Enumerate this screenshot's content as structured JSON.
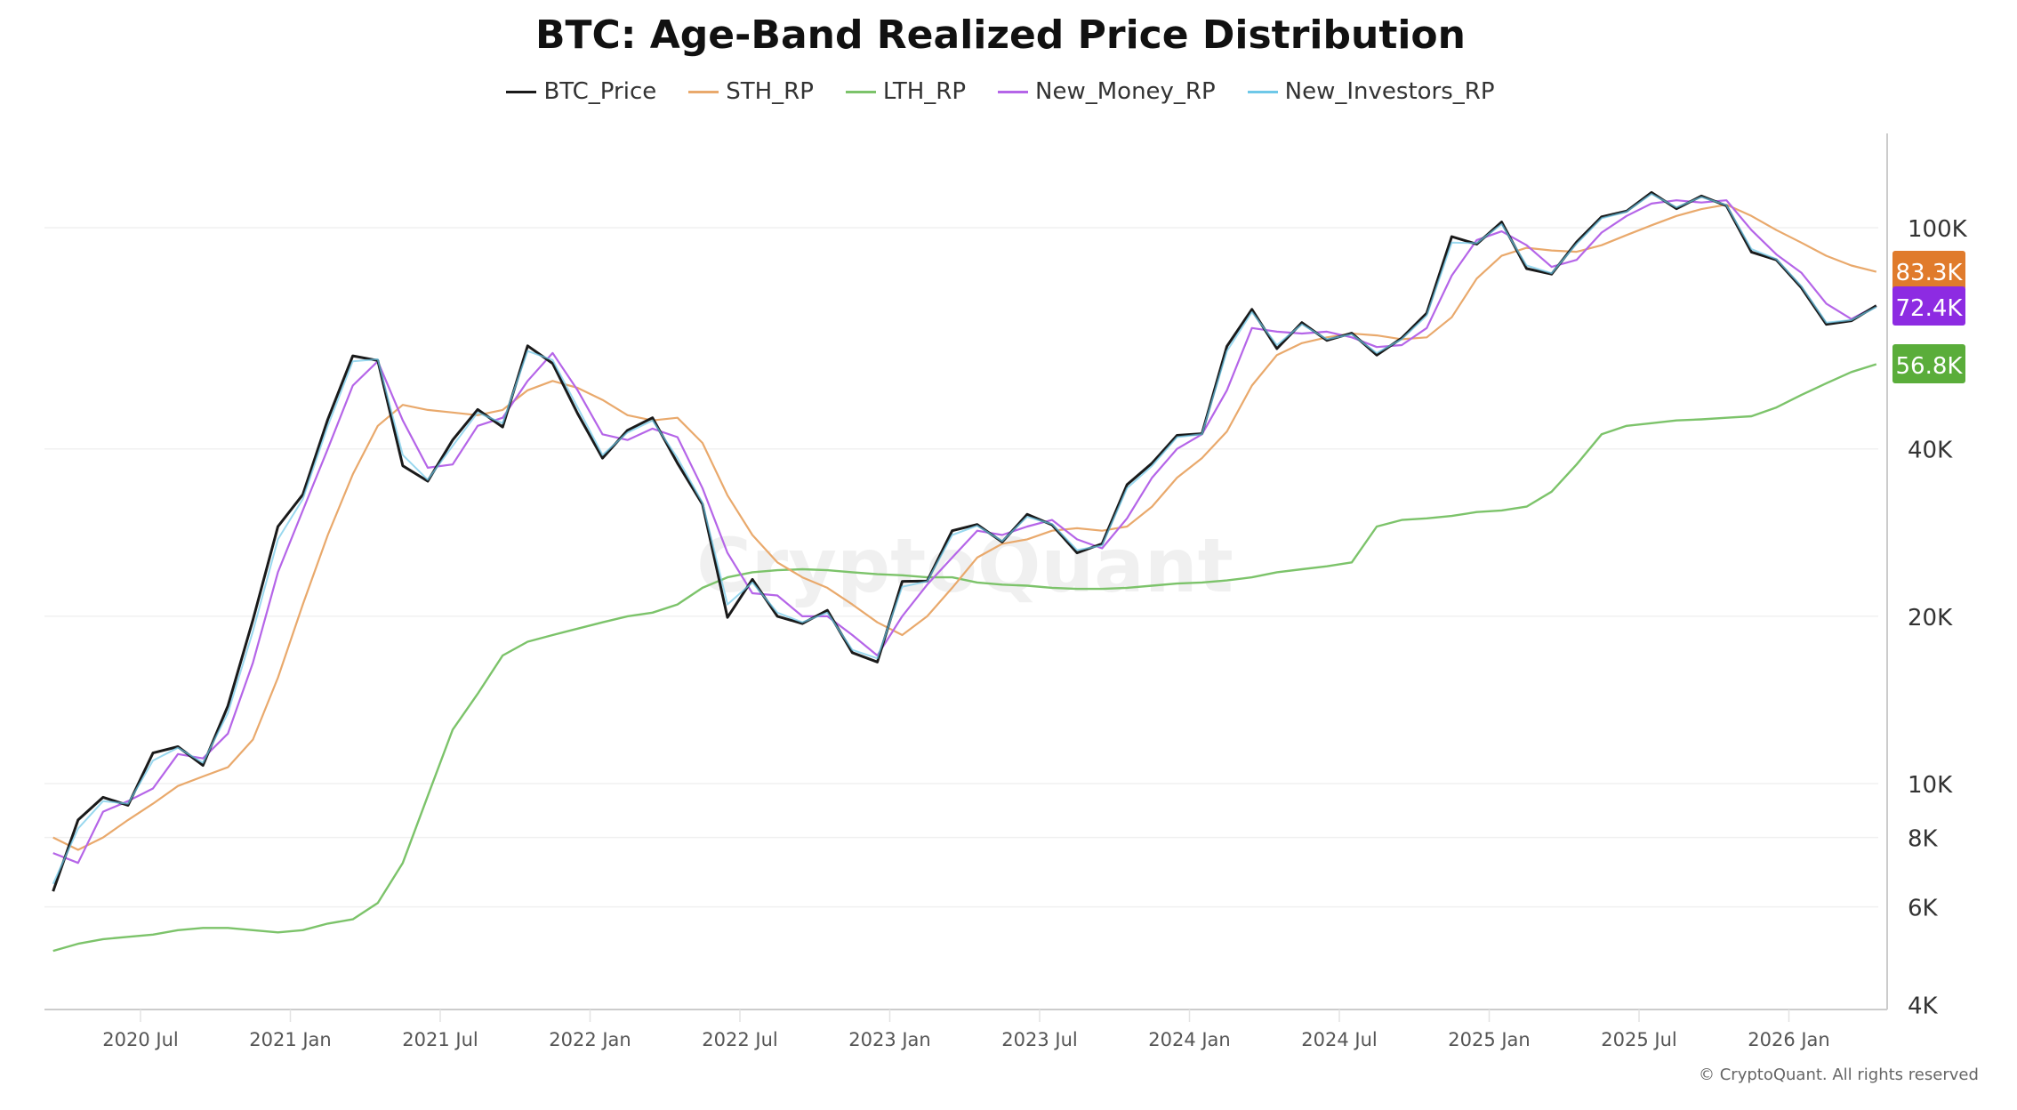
{
  "chart_data": {
    "type": "line",
    "title": "BTC: Age-Band Realized Price Distribution",
    "y_scale": "log",
    "ylim": [
      4000,
      140000
    ],
    "y_ticks": [
      {
        "v": 100000,
        "label": "100K"
      },
      {
        "v": 40000,
        "label": "40K"
      },
      {
        "v": 20000,
        "label": "20K"
      },
      {
        "v": 10000,
        "label": "10K"
      },
      {
        "v": 8000,
        "label": "8K"
      },
      {
        "v": 6000,
        "label": "6K"
      },
      {
        "v": 4000,
        "label": "4K"
      }
    ],
    "x_ticks": [
      {
        "v": "2020-07",
        "label": "2020 Jul"
      },
      {
        "v": "2021-01",
        "label": "2021 Jan"
      },
      {
        "v": "2021-07",
        "label": "2021 Jul"
      },
      {
        "v": "2022-01",
        "label": "2022 Jan"
      },
      {
        "v": "2022-07",
        "label": "2022 Jul"
      },
      {
        "v": "2023-01",
        "label": "2023 Jan"
      },
      {
        "v": "2023-07",
        "label": "2023 Jul"
      },
      {
        "v": "2024-01",
        "label": "2024 Jan"
      },
      {
        "v": "2024-07",
        "label": "2024 Jul"
      },
      {
        "v": "2025-01",
        "label": "2025 Jan"
      },
      {
        "v": "2025-07",
        "label": "2025 Jul"
      },
      {
        "v": "2026-01",
        "label": "2026 Jan"
      }
    ],
    "grid": true,
    "legend_position": "top-center",
    "x": [
      "2020-03",
      "2020-04",
      "2020-05",
      "2020-06",
      "2020-07",
      "2020-08",
      "2020-09",
      "2020-10",
      "2020-11",
      "2020-12",
      "2021-01",
      "2021-02",
      "2021-03",
      "2021-04",
      "2021-05",
      "2021-06",
      "2021-07",
      "2021-08",
      "2021-09",
      "2021-10",
      "2021-11",
      "2021-12",
      "2022-01",
      "2022-02",
      "2022-03",
      "2022-04",
      "2022-05",
      "2022-06",
      "2022-07",
      "2022-08",
      "2022-09",
      "2022-10",
      "2022-11",
      "2022-12",
      "2023-01",
      "2023-02",
      "2023-03",
      "2023-04",
      "2023-05",
      "2023-06",
      "2023-07",
      "2023-08",
      "2023-09",
      "2023-10",
      "2023-11",
      "2023-12",
      "2024-01",
      "2024-02",
      "2024-03",
      "2024-04",
      "2024-05",
      "2024-06",
      "2024-07",
      "2024-08",
      "2024-09",
      "2024-10",
      "2024-11",
      "2024-12",
      "2025-01",
      "2025-02",
      "2025-03",
      "2025-04",
      "2025-05",
      "2025-06",
      "2025-07",
      "2025-08",
      "2025-09",
      "2025-10",
      "2025-11",
      "2025-12",
      "2026-01",
      "2026-02",
      "2026-03",
      "2026-04"
    ],
    "series": [
      {
        "name": "LTH_RP",
        "color": "#7cc36a",
        "values": [
          5000,
          5150,
          5250,
          5300,
          5350,
          5450,
          5500,
          5500,
          5450,
          5400,
          5450,
          5600,
          5700,
          6100,
          7200,
          9500,
          12500,
          14500,
          17000,
          18000,
          18500,
          19000,
          19500,
          20000,
          20300,
          21000,
          22500,
          23500,
          24000,
          24200,
          24300,
          24200,
          24000,
          23800,
          23700,
          23500,
          23500,
          23000,
          22800,
          22700,
          22500,
          22400,
          22400,
          22500,
          22700,
          22900,
          23000,
          23200,
          23500,
          24000,
          24300,
          24600,
          25000,
          29000,
          29800,
          30000,
          30300,
          30800,
          31000,
          31500,
          33500,
          37500,
          42500,
          44000,
          44500,
          45000,
          45200,
          45500,
          45800,
          47500,
          50000,
          52500,
          55000,
          56800
        ]
      },
      {
        "name": "STH_RP",
        "color": "#e9a96c",
        "values": [
          8000,
          7600,
          8000,
          8600,
          9200,
          9900,
          10300,
          10700,
          12000,
          15500,
          21000,
          28000,
          36000,
          44000,
          48000,
          47000,
          46500,
          46000,
          47000,
          51000,
          53000,
          51500,
          49000,
          46000,
          45000,
          45500,
          41000,
          33000,
          28000,
          25000,
          23500,
          22500,
          21000,
          19500,
          18500,
          20000,
          22500,
          25500,
          27000,
          27500,
          28500,
          28800,
          28500,
          29000,
          31500,
          35500,
          38500,
          43000,
          52000,
          59000,
          62000,
          63500,
          64500,
          64000,
          63000,
          63500,
          69000,
          81000,
          89000,
          92000,
          91000,
          90500,
          93000,
          97000,
          101000,
          105000,
          108000,
          110000,
          105000,
          99000,
          94000,
          89000,
          85500,
          83300
        ]
      },
      {
        "name": "New_Money_RP",
        "color": "#b565e8",
        "values": [
          7500,
          7200,
          8900,
          9300,
          9800,
          11300,
          11100,
          12300,
          16500,
          24000,
          31000,
          40000,
          52000,
          57500,
          45000,
          37000,
          37500,
          44000,
          45500,
          53000,
          59500,
          51000,
          42500,
          41500,
          43500,
          42000,
          34000,
          26000,
          22000,
          21800,
          20000,
          20000,
          18500,
          17000,
          20000,
          22800,
          25500,
          28500,
          28000,
          29000,
          29800,
          27500,
          26500,
          30000,
          35500,
          40000,
          42500,
          51000,
          66000,
          65000,
          64500,
          65000,
          63500,
          61000,
          61500,
          66000,
          82000,
          95000,
          98500,
          93000,
          85000,
          87500,
          98000,
          105000,
          110500,
          112000,
          111000,
          112000,
          99000,
          89500,
          83000,
          73000,
          68500,
          72400
        ]
      },
      {
        "name": "New_Investors_RP",
        "color": "#6ec8e8",
        "values": [
          6600,
          8300,
          9300,
          9200,
          11000,
          11600,
          10900,
          13400,
          18800,
          27500,
          32500,
          44000,
          57500,
          58000,
          39000,
          35200,
          40500,
          46500,
          44500,
          60000,
          57800,
          47500,
          39000,
          42800,
          45000,
          38500,
          32000,
          21000,
          23000,
          20300,
          19500,
          20300,
          17400,
          16800,
          22600,
          23100,
          28000,
          29100,
          27300,
          30200,
          29300,
          26300,
          26800,
          34000,
          37300,
          42000,
          42500,
          60000,
          70500,
          61500,
          67000,
          63000,
          64300,
          59500,
          63000,
          69500,
          94000,
          93800,
          101500,
          85500,
          82800,
          93500,
          104000,
          106800,
          115000,
          108800,
          113500,
          109800,
          91500,
          87800,
          78500,
          67500,
          68200,
          72000
        ]
      },
      {
        "name": "BTC_Price",
        "color": "#1a1a1a",
        "values": [
          6400,
          8600,
          9450,
          9140,
          11350,
          11650,
          10780,
          13800,
          19700,
          29000,
          33100,
          45200,
          58800,
          57700,
          37300,
          35000,
          41500,
          47100,
          43800,
          61300,
          57000,
          46300,
          38500,
          43200,
          45500,
          37700,
          31800,
          19900,
          23300,
          20000,
          19400,
          20500,
          17200,
          16550,
          23100,
          23150,
          28500,
          29250,
          27200,
          30500,
          29200,
          26000,
          27000,
          34500,
          37700,
          42300,
          42600,
          61200,
          71300,
          60600,
          67500,
          62700,
          64600,
          59000,
          63300,
          70200,
          96400,
          93400,
          102400,
          84400,
          82500,
          94200,
          104600,
          107100,
          115700,
          108200,
          114000,
          109500,
          90400,
          87500,
          78000,
          67000,
          68000,
          72400
        ]
      }
    ],
    "last_value_labels": [
      {
        "series": "STH_RP",
        "label": "83.3K",
        "color": "#e07b2c"
      },
      {
        "series": "New_Money_RP",
        "label": "72.4K",
        "color": "#8d2be2"
      },
      {
        "series": "LTH_RP",
        "label": "56.8K",
        "color": "#5aad3a"
      }
    ]
  },
  "watermark": "CryptoQuant",
  "copyright": "© CryptoQuant. All rights reserved"
}
